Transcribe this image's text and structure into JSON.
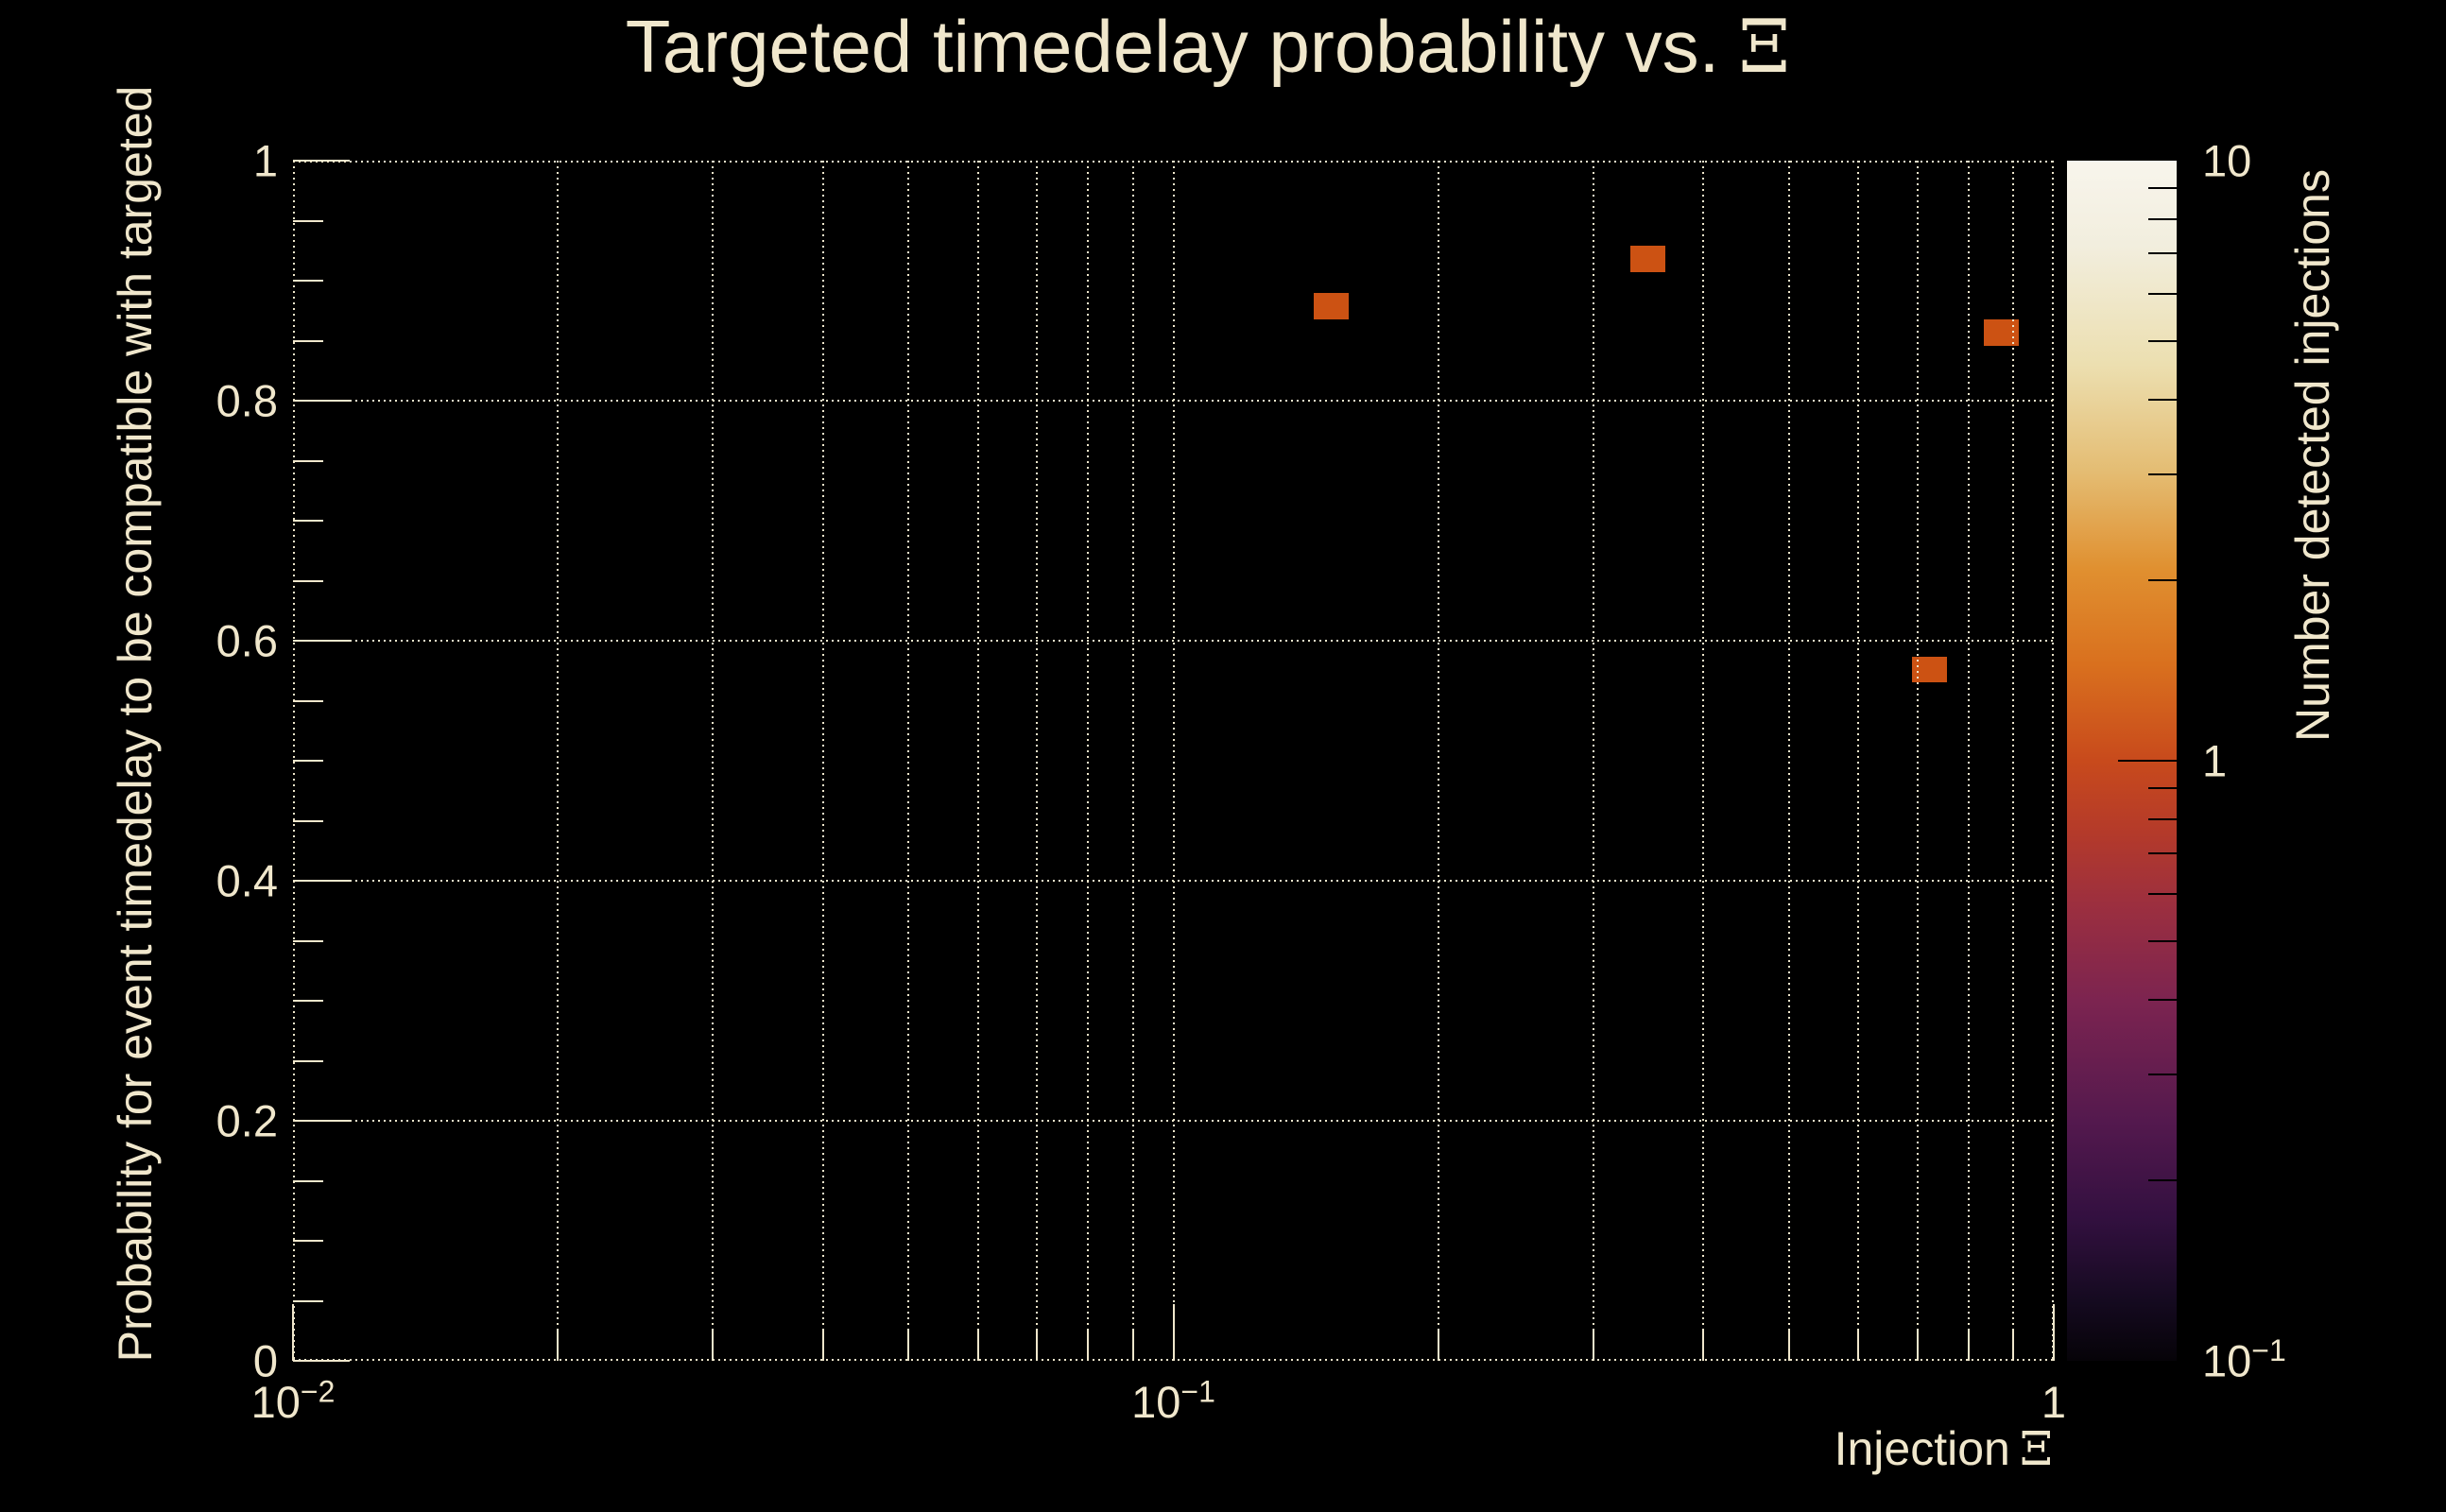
{
  "chart_data": {
    "type": "scatter",
    "title_text": "Targeted timedelay probability vs.",
    "title_symbol": "Ξ",
    "xlabel_text": "Injection",
    "xlabel_symbol": "Ξ",
    "ylabel": "Probability for event timedelay to be compatible with targeted",
    "background_color": "#000000",
    "text_color": "#f0e7cc",
    "grid_color": "#f0e7cc",
    "grid": true,
    "x_axis": {
      "scale": "log",
      "min": 0.01,
      "max": 1,
      "major_ticks": [
        {
          "value": 0.01,
          "base": "10",
          "sup": "−2"
        },
        {
          "value": 0.1,
          "base": "10",
          "sup": "−1"
        },
        {
          "value": 1,
          "base": "1",
          "sup": ""
        }
      ],
      "minor_mantissas": [
        2,
        3,
        4,
        5,
        6,
        7,
        8,
        9
      ]
    },
    "y_axis": {
      "scale": "linear",
      "min": 0,
      "max": 1,
      "major_step": 0.2,
      "minor_step": 0.05,
      "major_ticks": [
        {
          "value": 0,
          "label": "0"
        },
        {
          "value": 0.2,
          "label": "0.2"
        },
        {
          "value": 0.4,
          "label": "0.4"
        },
        {
          "value": 0.6,
          "label": "0.6"
        },
        {
          "value": 0.8,
          "label": "0.8"
        },
        {
          "value": 1,
          "label": "1"
        }
      ]
    },
    "points": [
      {
        "x": 0.151,
        "y": 0.879,
        "n": 1
      },
      {
        "x": 0.346,
        "y": 0.918,
        "n": 1
      },
      {
        "x": 0.872,
        "y": 0.857,
        "n": 1
      },
      {
        "x": 0.723,
        "y": 0.576,
        "n": 1
      }
    ],
    "marker": {
      "color": "#cc5213",
      "bin_width_dex": 0.04,
      "bin_height": 0.022
    },
    "colorbar": {
      "label": "Number detected injections",
      "scale": "log",
      "min": 0.1,
      "max": 10,
      "tick_labels": [
        {
          "value": 10,
          "base": "10",
          "sup": ""
        },
        {
          "value": 1,
          "base": "1",
          "sup": ""
        },
        {
          "value": 0.1,
          "base": "10",
          "sup": "−1"
        }
      ],
      "minor_mantissas": [
        2,
        3,
        4,
        5,
        6,
        7,
        8,
        9
      ],
      "gradient_stops": [
        {
          "pos": 0,
          "color": "#060308"
        },
        {
          "pos": 5,
          "color": "#150a20"
        },
        {
          "pos": 12,
          "color": "#331040"
        },
        {
          "pos": 20,
          "color": "#54194e"
        },
        {
          "pos": 30,
          "color": "#7c2450"
        },
        {
          "pos": 38,
          "color": "#9c2f3f"
        },
        {
          "pos": 44,
          "color": "#b43a2a"
        },
        {
          "pos": 50,
          "color": "#c84a1c"
        },
        {
          "pos": 58,
          "color": "#d9701e"
        },
        {
          "pos": 66,
          "color": "#e09030"
        },
        {
          "pos": 74,
          "color": "#e4bc72"
        },
        {
          "pos": 83,
          "color": "#ecdfb0"
        },
        {
          "pos": 93,
          "color": "#f2eede"
        },
        {
          "pos": 100,
          "color": "#f8f5ec"
        }
      ]
    }
  }
}
